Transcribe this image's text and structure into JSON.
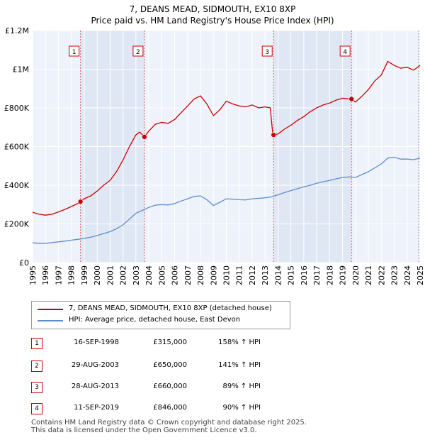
{
  "chart_data": {
    "type": "line",
    "title": "7, DEANS MEAD, SIDMOUTH, EX10 8XP",
    "subtitle": "Price paid vs. HM Land Registry's House Price Index (HPI)",
    "xlim": [
      1995,
      2025
    ],
    "ylim": [
      0,
      1200000
    ],
    "x_ticks": [
      1995,
      1996,
      1997,
      1998,
      1999,
      2000,
      2001,
      2002,
      2003,
      2004,
      2005,
      2006,
      2007,
      2008,
      2009,
      2010,
      2011,
      2012,
      2013,
      2014,
      2015,
      2016,
      2017,
      2018,
      2019,
      2020,
      2021,
      2022,
      2023,
      2024,
      2025
    ],
    "y_ticks": [
      {
        "value": 0,
        "label": "£0"
      },
      {
        "value": 200000,
        "label": "£200K"
      },
      {
        "value": 400000,
        "label": "£400K"
      },
      {
        "value": 600000,
        "label": "£600K"
      },
      {
        "value": 800000,
        "label": "£800K"
      },
      {
        "value": 1000000,
        "label": "£1M"
      },
      {
        "value": 1200000,
        "label": "£1.2M"
      }
    ],
    "series": [
      {
        "name": "7, DEANS MEAD, SIDMOUTH, EX10 8XP (detached house)",
        "color": "#cc0000",
        "points": [
          [
            1995.0,
            260000
          ],
          [
            1995.5,
            250000
          ],
          [
            1996.0,
            245000
          ],
          [
            1996.5,
            250000
          ],
          [
            1997.0,
            262000
          ],
          [
            1997.5,
            275000
          ],
          [
            1998.0,
            290000
          ],
          [
            1998.5,
            305000
          ],
          [
            1998.71,
            315000
          ],
          [
            1999.0,
            330000
          ],
          [
            1999.5,
            345000
          ],
          [
            2000.0,
            370000
          ],
          [
            2000.5,
            400000
          ],
          [
            2001.0,
            425000
          ],
          [
            2001.5,
            470000
          ],
          [
            2002.0,
            530000
          ],
          [
            2002.5,
            600000
          ],
          [
            2003.0,
            660000
          ],
          [
            2003.3,
            675000
          ],
          [
            2003.66,
            650000
          ],
          [
            2004.0,
            680000
          ],
          [
            2004.5,
            715000
          ],
          [
            2005.0,
            725000
          ],
          [
            2005.5,
            720000
          ],
          [
            2006.0,
            740000
          ],
          [
            2006.5,
            775000
          ],
          [
            2007.0,
            810000
          ],
          [
            2007.5,
            845000
          ],
          [
            2008.0,
            862000
          ],
          [
            2008.5,
            820000
          ],
          [
            2009.0,
            760000
          ],
          [
            2009.5,
            790000
          ],
          [
            2010.0,
            835000
          ],
          [
            2010.5,
            820000
          ],
          [
            2011.0,
            810000
          ],
          [
            2011.5,
            805000
          ],
          [
            2012.0,
            815000
          ],
          [
            2012.5,
            800000
          ],
          [
            2013.0,
            805000
          ],
          [
            2013.4,
            800000
          ],
          [
            2013.6,
            665000
          ],
          [
            2013.66,
            660000
          ],
          [
            2014.0,
            665000
          ],
          [
            2014.5,
            690000
          ],
          [
            2015.0,
            710000
          ],
          [
            2015.5,
            735000
          ],
          [
            2016.0,
            755000
          ],
          [
            2016.5,
            780000
          ],
          [
            2017.0,
            800000
          ],
          [
            2017.5,
            815000
          ],
          [
            2018.0,
            825000
          ],
          [
            2018.5,
            840000
          ],
          [
            2019.0,
            850000
          ],
          [
            2019.69,
            846000
          ],
          [
            2020.0,
            830000
          ],
          [
            2020.5,
            860000
          ],
          [
            2021.0,
            895000
          ],
          [
            2021.5,
            940000
          ],
          [
            2022.0,
            970000
          ],
          [
            2022.5,
            1040000
          ],
          [
            2023.0,
            1020000
          ],
          [
            2023.5,
            1005000
          ],
          [
            2024.0,
            1010000
          ],
          [
            2024.5,
            995000
          ],
          [
            2025.0,
            1020000
          ]
        ]
      },
      {
        "name": "HPI: Average price, detached house, East Devon",
        "color": "#5b8ecf",
        "points": [
          [
            1995.0,
            102000
          ],
          [
            1995.5,
            100000
          ],
          [
            1996.0,
            100000
          ],
          [
            1996.5,
            103000
          ],
          [
            1997.0,
            107000
          ],
          [
            1997.5,
            111000
          ],
          [
            1998.0,
            116000
          ],
          [
            1998.5,
            120000
          ],
          [
            1999.0,
            125000
          ],
          [
            1999.5,
            131000
          ],
          [
            2000.0,
            140000
          ],
          [
            2000.5,
            150000
          ],
          [
            2001.0,
            160000
          ],
          [
            2001.5,
            175000
          ],
          [
            2002.0,
            195000
          ],
          [
            2002.5,
            225000
          ],
          [
            2003.0,
            255000
          ],
          [
            2003.5,
            270000
          ],
          [
            2004.0,
            285000
          ],
          [
            2004.5,
            297000
          ],
          [
            2005.0,
            300000
          ],
          [
            2005.5,
            298000
          ],
          [
            2006.0,
            305000
          ],
          [
            2006.5,
            318000
          ],
          [
            2007.0,
            330000
          ],
          [
            2007.5,
            342000
          ],
          [
            2008.0,
            345000
          ],
          [
            2008.5,
            325000
          ],
          [
            2009.0,
            295000
          ],
          [
            2009.5,
            312000
          ],
          [
            2010.0,
            330000
          ],
          [
            2010.5,
            328000
          ],
          [
            2011.0,
            325000
          ],
          [
            2011.5,
            324000
          ],
          [
            2012.0,
            330000
          ],
          [
            2012.5,
            332000
          ],
          [
            2013.0,
            335000
          ],
          [
            2013.5,
            340000
          ],
          [
            2014.0,
            350000
          ],
          [
            2014.5,
            362000
          ],
          [
            2015.0,
            372000
          ],
          [
            2015.5,
            382000
          ],
          [
            2016.0,
            392000
          ],
          [
            2016.5,
            400000
          ],
          [
            2017.0,
            410000
          ],
          [
            2017.5,
            418000
          ],
          [
            2018.0,
            425000
          ],
          [
            2018.5,
            433000
          ],
          [
            2019.0,
            440000
          ],
          [
            2019.5,
            443000
          ],
          [
            2020.0,
            440000
          ],
          [
            2020.5,
            455000
          ],
          [
            2021.0,
            470000
          ],
          [
            2021.5,
            490000
          ],
          [
            2022.0,
            510000
          ],
          [
            2022.5,
            540000
          ],
          [
            2023.0,
            545000
          ],
          [
            2023.5,
            535000
          ],
          [
            2024.0,
            535000
          ],
          [
            2024.5,
            532000
          ],
          [
            2025.0,
            540000
          ]
        ]
      }
    ],
    "sales": [
      {
        "n": "1",
        "x": 1998.71,
        "date": "16-SEP-1998",
        "price": 315000,
        "price_label": "£315,000",
        "hpi": "158% ↑ HPI"
      },
      {
        "n": "2",
        "x": 2003.66,
        "date": "29-AUG-2003",
        "price": 650000,
        "price_label": "£650,000",
        "hpi": "141% ↑ HPI"
      },
      {
        "n": "3",
        "x": 2013.66,
        "date": "28-AUG-2013",
        "price": 660000,
        "price_label": "£660,000",
        "hpi": "89% ↑ HPI"
      },
      {
        "n": "4",
        "x": 2019.69,
        "date": "11-SEP-2019",
        "price": 846000,
        "price_label": "£846,000",
        "hpi": "90% ↑ HPI"
      }
    ]
  },
  "legend": {
    "property_label": "7, DEANS MEAD, SIDMOUTH, EX10 8XP (detached house)",
    "hpi_label": "HPI: Average price, detached house, East Devon"
  },
  "footer": {
    "line1": "Contains HM Land Registry data © Crown copyright and database right 2025.",
    "line2": "This data is licensed under the Open Government Licence v3.0."
  },
  "colors": {
    "property_line": "#cc0000",
    "hpi_line": "#5b8ecf",
    "shade": "#e5ecf7",
    "plot_bg": "#eef2fa"
  }
}
